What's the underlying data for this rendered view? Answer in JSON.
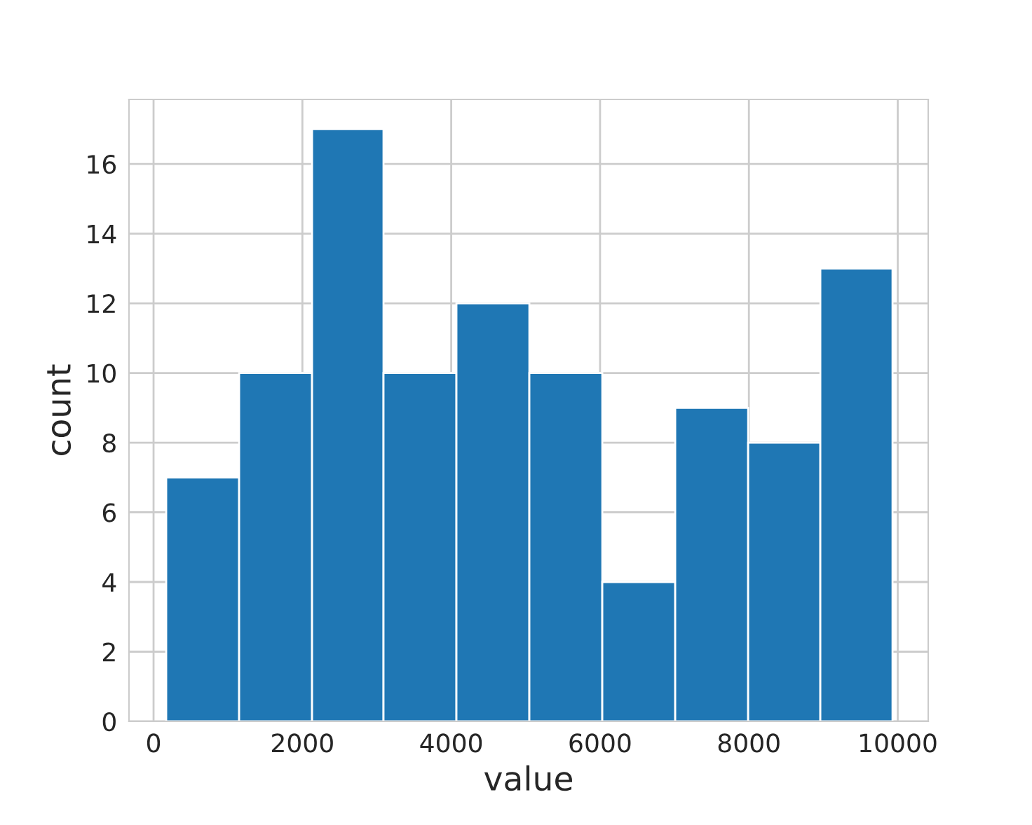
{
  "chart_data": {
    "type": "histogram",
    "xlabel": "value",
    "ylabel": "count",
    "bins": [
      170,
      1150,
      2130,
      3090,
      4070,
      5050,
      6030,
      7010,
      7990,
      8960,
      9930
    ],
    "values": [
      7,
      10,
      17,
      10,
      12,
      10,
      4,
      9,
      8,
      13
    ],
    "color": "#1f77b4",
    "xlim": [
      -330,
      10410
    ],
    "ylim": [
      0,
      17.85
    ],
    "xticks": [
      0,
      2000,
      4000,
      6000,
      8000,
      10000
    ],
    "yticks": [
      0,
      2,
      4,
      6,
      8,
      10,
      12,
      14,
      16
    ],
    "grid": true
  }
}
